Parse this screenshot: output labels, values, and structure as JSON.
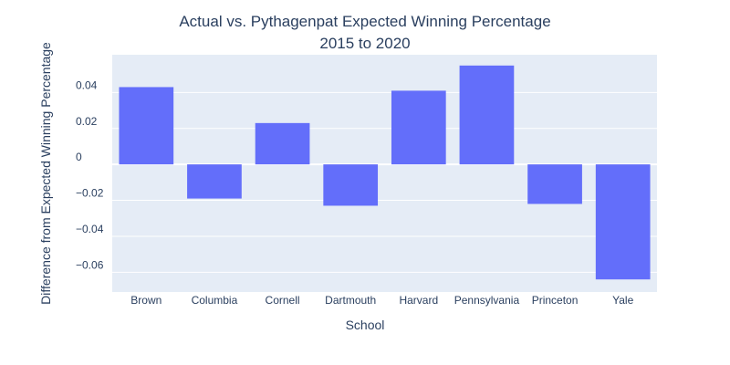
{
  "chart_data": {
    "type": "bar",
    "title": "Actual vs. Pythagenpat Expected Winning Percentage",
    "subtitle": "2015 to 2020",
    "xlabel": "School",
    "ylabel": "Difference from Expected Winning Percentage",
    "categories": [
      "Brown",
      "Columbia",
      "Cornell",
      "Dartmouth",
      "Harvard",
      "Pennsylvania",
      "Princeton",
      "Yale"
    ],
    "values": [
      0.043,
      -0.019,
      0.023,
      -0.023,
      0.041,
      0.055,
      -0.022,
      -0.064
    ],
    "ylim": [
      -0.071,
      0.061
    ],
    "yticks": [
      -0.06,
      -0.04,
      -0.02,
      0,
      0.02,
      0.04
    ],
    "ytick_labels": [
      "−0.06",
      "−0.04",
      "−0.02",
      "0",
      "0.02",
      "0.04"
    ],
    "grid": true,
    "colors": {
      "bar": "#636efa",
      "plot_bg": "#e5ecf6",
      "grid": "#ffffff",
      "text": "#2a3f5f"
    }
  }
}
